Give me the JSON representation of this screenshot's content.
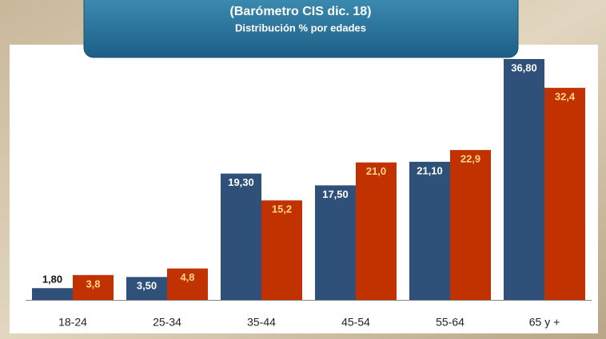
{
  "chart_data": {
    "type": "bar",
    "title": "(Barómetro CIS dic. 18)",
    "subtitle": "Distribución % por edades",
    "categories": [
      "18-24",
      "25-34",
      "35-44",
      "45-54",
      "55-64",
      "65 y +"
    ],
    "series": [
      {
        "color": "#2f5078",
        "values": [
          1.8,
          3.5,
          19.3,
          17.5,
          21.1,
          36.8
        ],
        "value_labels": [
          "1,80",
          "3,50",
          "19,30",
          "17,50",
          "21,10",
          "36,80"
        ]
      },
      {
        "color": "#c23200",
        "values": [
          3.8,
          4.8,
          15.2,
          21.0,
          22.9,
          32.4
        ],
        "value_labels": [
          "3,8",
          "4,8",
          "15,2",
          "21,0",
          "22,9",
          "32,4"
        ]
      }
    ]
  }
}
